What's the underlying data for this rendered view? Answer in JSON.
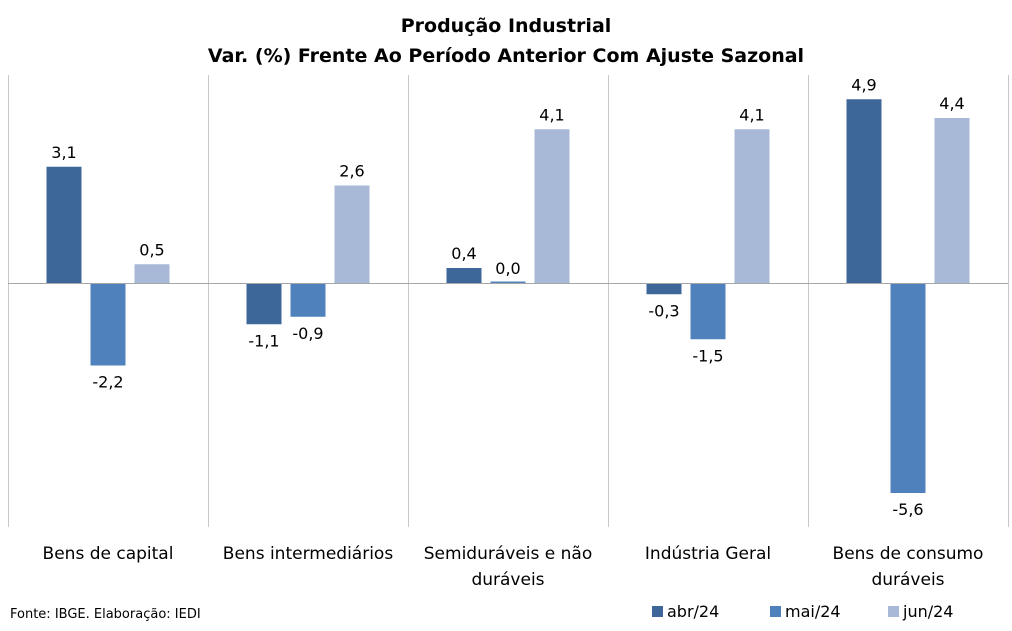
{
  "title_line1": "Produção Industrial",
  "title_line2": "Var. (%) Frente Ao Período Anterior Com Ajuste Sazonal",
  "source": "Fonte: IBGE. Elaboração: IEDI",
  "chart_data": {
    "type": "bar",
    "title": "Produção Industrial / Var. (%) Frente Ao Período Anterior Com Ajuste Sazonal",
    "categories": [
      [
        "Bens de capital"
      ],
      [
        "Bens intermediários"
      ],
      [
        "Semiduráveis e não",
        "duráveis"
      ],
      [
        "Indústria Geral"
      ],
      [
        "Bens de consumo",
        "duráveis"
      ]
    ],
    "series": [
      {
        "name": "abr/24",
        "color": "#3d6699",
        "values": [
          3.1,
          -1.1,
          0.4,
          -0.3,
          4.9
        ],
        "labels": [
          "3,1",
          "-1,1",
          "0,4",
          "-0,3",
          "4,9"
        ]
      },
      {
        "name": "mai/24",
        "color": "#4f81bd",
        "values": [
          -2.2,
          -0.9,
          0.0,
          -1.5,
          -5.6
        ],
        "labels": [
          "-2,2",
          "-0,9",
          "0,0",
          "-1,5",
          "-5,6"
        ]
      },
      {
        "name": "jun/24",
        "color": "#a8b9d8",
        "values": [
          0.5,
          2.6,
          4.1,
          4.1,
          4.4
        ],
        "labels": [
          "0,5",
          "2,6",
          "4,1",
          "4,1",
          "4,4"
        ]
      }
    ],
    "ylim": [
      -6.5,
      5.5
    ],
    "grid": false,
    "category_separators": true,
    "legend_position": "bottom-right",
    "xlabel": "",
    "ylabel": ""
  }
}
